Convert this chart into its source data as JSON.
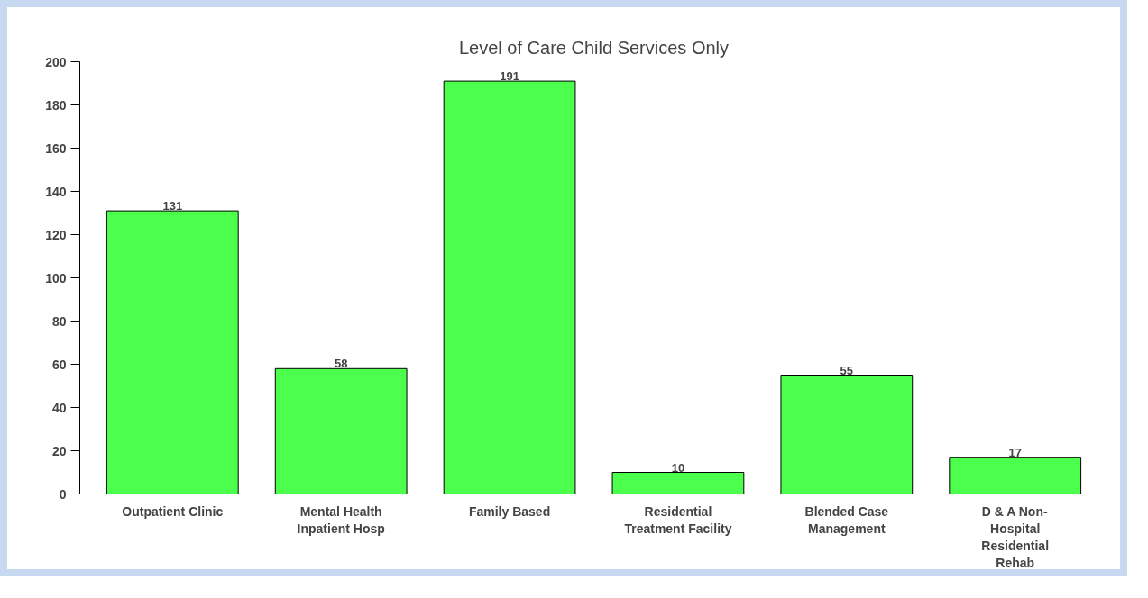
{
  "chart_data": {
    "type": "bar",
    "title": "Level of Care Child Services Only",
    "categories": [
      "Outpatient Clinic",
      "Mental Health\nInpatient Hosp",
      "Family Based",
      "Residential\nTreatment Facility",
      "Blended Case\nManagement",
      "D & A Non-\nHospital\nResidential\nRehab"
    ],
    "values": [
      131,
      58,
      191,
      10,
      55,
      17
    ],
    "color": "#4cff4c",
    "ylim": [
      0,
      200
    ],
    "yticks": [
      0,
      20,
      40,
      60,
      80,
      100,
      120,
      140,
      160,
      180,
      200
    ],
    "data_labels": true,
    "grid": false
  }
}
